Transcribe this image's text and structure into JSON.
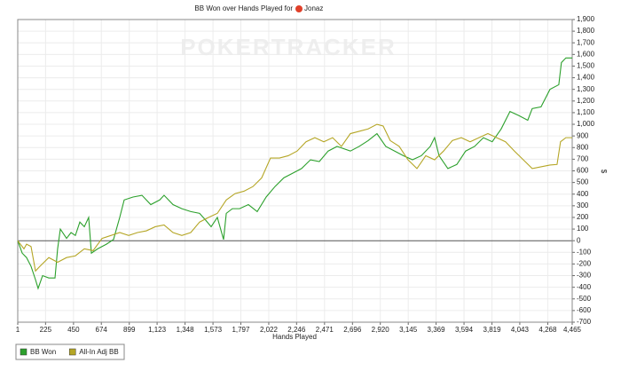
{
  "chart_data": {
    "type": "line",
    "title": "BB Won over Hands Played for",
    "player": "Jonaz",
    "watermark": "POKERTRACKER",
    "xlabel": "Hands Played",
    "ylabel": "$",
    "xlim": [
      1,
      4465
    ],
    "ylim": [
      -700,
      1900
    ],
    "grid": true,
    "legend": "bottom-left",
    "xticks": [
      1,
      225,
      450,
      674,
      899,
      {
        "value": 1123,
        "label": "1,123"
      },
      {
        "value": 1348,
        "label": "1,348"
      },
      {
        "value": 1573,
        "label": "1,573"
      },
      {
        "value": 1797,
        "label": "1,797"
      },
      {
        "value": 2022,
        "label": "2,022"
      },
      {
        "value": 2246,
        "label": "2,246"
      },
      {
        "value": 2471,
        "label": "2,471"
      },
      {
        "value": 2696,
        "label": "2,696"
      },
      {
        "value": 2920,
        "label": "2,920"
      },
      {
        "value": 3145,
        "label": "3,145"
      },
      {
        "value": 3369,
        "label": "3,369"
      },
      {
        "value": 3594,
        "label": "3,594"
      },
      {
        "value": 3819,
        "label": "3,819"
      },
      {
        "value": 4043,
        "label": "4,043"
      },
      {
        "value": 4268,
        "label": "4,268"
      },
      {
        "value": 4465,
        "label": "4,465"
      }
    ],
    "yticks": [
      -700,
      -600,
      -500,
      -400,
      -300,
      -200,
      -100,
      0,
      100,
      200,
      300,
      400,
      500,
      600,
      700,
      800,
      900,
      {
        "value": 1000,
        "label": "1,000"
      },
      {
        "value": 1100,
        "label": "1,100"
      },
      {
        "value": 1200,
        "label": "1,200"
      },
      {
        "value": 1300,
        "label": "1,300"
      },
      {
        "value": 1400,
        "label": "1,400"
      },
      {
        "value": 1500,
        "label": "1,500"
      },
      {
        "value": 1600,
        "label": "1,600"
      },
      {
        "value": 1700,
        "label": "1,700"
      },
      {
        "value": 1800,
        "label": "1,800"
      },
      {
        "value": 1900,
        "label": "1,900"
      }
    ],
    "series": [
      {
        "name": "BB Won",
        "color": "#2ca02c",
        "x": [
          1,
          37,
          72,
          108,
          144,
          165,
          201,
          251,
          301,
          322,
          344,
          394,
          430,
          465,
          501,
          537,
          572,
          594,
          644,
          715,
          772,
          822,
          858,
          929,
          1001,
          1072,
          1144,
          1179,
          1251,
          1322,
          1394,
          1465,
          1515,
          1558,
          1608,
          1658,
          1680,
          1729,
          1787,
          1858,
          1929,
          2001,
          2072,
          2143,
          2215,
          2286,
          2358,
          2429,
          2500,
          2572,
          2679,
          2750,
          2822,
          2893,
          2964,
          3036,
          3107,
          3179,
          3250,
          3322,
          3357,
          3393,
          3464,
          3536,
          3607,
          3679,
          3750,
          3821,
          3893,
          3964,
          4036,
          4107,
          4143,
          4214,
          4286,
          4357,
          4378,
          4414,
          4465
        ],
        "values": [
          0,
          -107,
          -145,
          -220,
          -335,
          -410,
          -300,
          -320,
          -320,
          -70,
          100,
          20,
          70,
          45,
          160,
          120,
          200,
          -107,
          -70,
          -30,
          10,
          200,
          350,
          375,
          390,
          310,
          350,
          390,
          310,
          275,
          250,
          235,
          175,
          120,
          200,
          10,
          235,
          275,
          275,
          310,
          250,
          375,
          465,
          540,
          580,
          620,
          695,
          680,
          770,
          810,
          770,
          810,
          860,
          920,
          810,
          770,
          730,
          695,
          730,
          810,
          885,
          730,
          620,
          655,
          770,
          810,
          885,
          850,
          960,
          1110,
          1075,
          1035,
          1135,
          1150,
          1300,
          1340,
          1530,
          1570,
          1570
        ]
      },
      {
        "name": "All-In Adj BB",
        "color": "#b5a626",
        "x": [
          1,
          51,
          72,
          108,
          144,
          180,
          251,
          322,
          394,
          465,
          537,
          608,
          680,
          751,
          822,
          894,
          965,
          1037,
          1108,
          1179,
          1251,
          1322,
          1394,
          1465,
          1537,
          1608,
          1680,
          1751,
          1822,
          1894,
          1965,
          2036,
          2108,
          2179,
          2250,
          2322,
          2393,
          2465,
          2536,
          2607,
          2679,
          2750,
          2822,
          2893,
          2943,
          3000,
          3072,
          3143,
          3215,
          3286,
          3357,
          3429,
          3500,
          3572,
          3643,
          3714,
          3786,
          3857,
          3928,
          4000,
          4071,
          4143,
          4214,
          4286,
          4343,
          4371,
          4414,
          4465
        ],
        "values": [
          0,
          -70,
          -30,
          -50,
          -260,
          -220,
          -145,
          -185,
          -145,
          -130,
          -70,
          -85,
          20,
          45,
          70,
          45,
          70,
          85,
          120,
          135,
          70,
          45,
          70,
          160,
          200,
          235,
          350,
          405,
          425,
          465,
          540,
          710,
          710,
          730,
          770,
          850,
          885,
          850,
          885,
          810,
          920,
          940,
          960,
          1000,
          985,
          860,
          810,
          695,
          620,
          730,
          695,
          770,
          860,
          885,
          850,
          885,
          920,
          885,
          850,
          770,
          695,
          620,
          635,
          650,
          655,
          850,
          885,
          885
        ]
      }
    ]
  }
}
